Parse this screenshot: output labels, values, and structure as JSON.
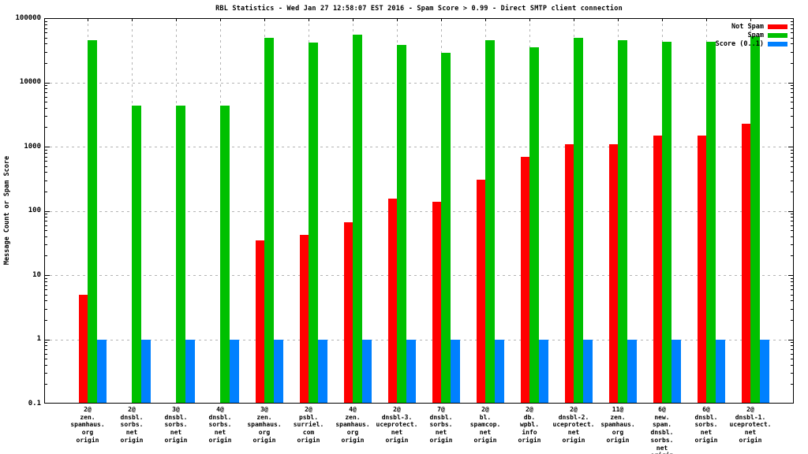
{
  "title": "RBL Statistics - Wed Jan 27 12:58:07 EST 2016 - Spam Score > 0.99 - Direct SMTP client connection",
  "ylabel": "Message Count or Spam Score",
  "legend": {
    "items": [
      {
        "label": "Not Spam",
        "color": "#ff0000"
      },
      {
        "label": "Spam",
        "color": "#00c000"
      },
      {
        "label": "Score (0..1)",
        "color": "#0080ff"
      }
    ]
  },
  "chart_data": {
    "type": "bar",
    "title": "RBL Statistics - Wed Jan 27 12:58:07 EST 2016 - Spam Score > 0.99 - Direct SMTP client connection",
    "xlabel": "",
    "ylabel": "Message Count or Spam Score",
    "y_scale": "log10",
    "ylim": [
      0.1,
      100000
    ],
    "ytick_labels": [
      "100000",
      "10000",
      "1000",
      "100",
      "10",
      "1",
      "0.1"
    ],
    "grid": true,
    "legend_position": "top-right-inside",
    "categories": [
      [
        "2@",
        "zen.",
        "spamhaus.",
        "org",
        "origin"
      ],
      [
        "2@",
        "dnsbl.",
        "sorbs.",
        "net",
        "origin"
      ],
      [
        "3@",
        "dnsbl.",
        "sorbs.",
        "net",
        "origin"
      ],
      [
        "4@",
        "dnsbl.",
        "sorbs.",
        "net",
        "origin"
      ],
      [
        "3@",
        "zen.",
        "spamhaus.",
        "org",
        "origin"
      ],
      [
        "2@",
        "psbl.",
        "surriel.",
        "com",
        "origin"
      ],
      [
        "4@",
        "zen.",
        "spamhaus.",
        "org",
        "origin"
      ],
      [
        "2@",
        "dnsbl-3.",
        "uceprotect.",
        "net",
        "origin"
      ],
      [
        "7@",
        "dnsbl.",
        "sorbs.",
        "net",
        "origin"
      ],
      [
        "2@",
        "bl.",
        "spamcop.",
        "net",
        "origin"
      ],
      [
        "2@",
        "db.",
        "wpbl.",
        "info",
        "origin"
      ],
      [
        "2@",
        "dnsbl-2.",
        "uceprotect.",
        "net",
        "origin"
      ],
      [
        "11@",
        "zen.",
        "spamhaus.",
        "org",
        "origin"
      ],
      [
        "6@",
        "new.",
        "spam.",
        "dnsbl.",
        "sorbs.",
        "net",
        "origin"
      ],
      [
        "6@",
        "dnsbl.",
        "sorbs.",
        "net",
        "origin"
      ],
      [
        "2@",
        "dnsbl-1.",
        "uceprotect.",
        "net",
        "origin"
      ]
    ],
    "series": [
      {
        "name": "Not Spam",
        "color": "#ff0000",
        "values": [
          5,
          null,
          null,
          null,
          35,
          42,
          67,
          155,
          140,
          310,
          700,
          1100,
          1100,
          1500,
          1500,
          2300
        ]
      },
      {
        "name": "Spam",
        "color": "#00c000",
        "values": [
          45000,
          4300,
          4300,
          4300,
          49000,
          42000,
          56000,
          38000,
          29000,
          45000,
          35000,
          49000,
          45000,
          43000,
          43000,
          53000
        ]
      },
      {
        "name": "Score (0..1)",
        "color": "#0080ff",
        "values": [
          1,
          1,
          1,
          1,
          1,
          1,
          1,
          1,
          1,
          1,
          1,
          1,
          1,
          1,
          1,
          1
        ]
      }
    ]
  }
}
